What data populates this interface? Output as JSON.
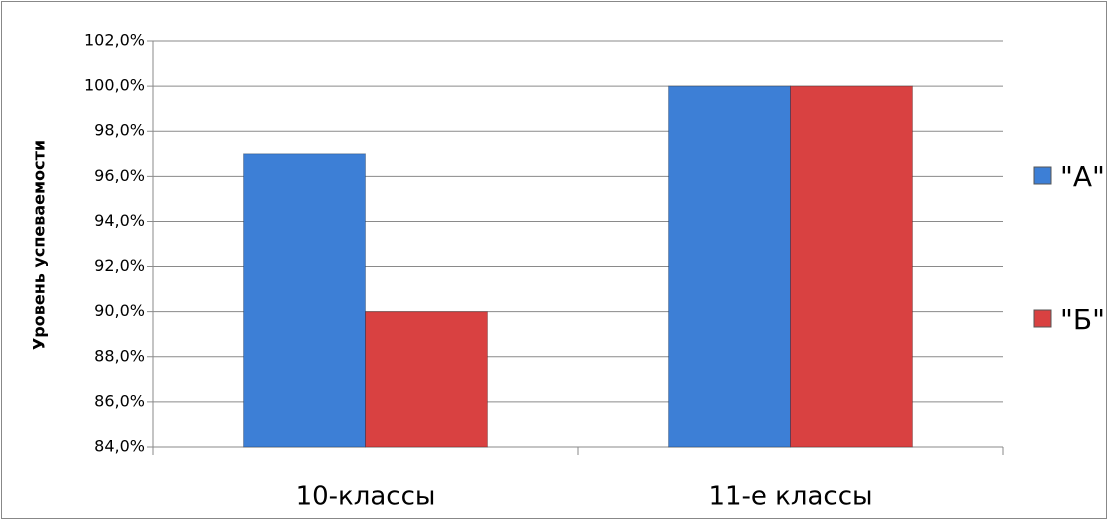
{
  "chart_data": {
    "type": "bar",
    "y_label": "Уровень успеваемости",
    "categories": [
      "10-классы",
      "11-е классы"
    ],
    "series": [
      {
        "name": "\"А\"",
        "color": "#3d7fd6",
        "values": [
          97.0,
          100.0
        ]
      },
      {
        "name": "\"Б\"",
        "color": "#d94141",
        "values": [
          90.0,
          100.0
        ]
      }
    ],
    "ylim": [
      84,
      102
    ],
    "yticks": [
      {
        "value": 84,
        "label": "84,0%"
      },
      {
        "value": 86,
        "label": "86,0%"
      },
      {
        "value": 88,
        "label": "88,0%"
      },
      {
        "value": 90,
        "label": "90,0%"
      },
      {
        "value": 92,
        "label": "92,0%"
      },
      {
        "value": 94,
        "label": "94,0%"
      },
      {
        "value": 96,
        "label": "96,0%"
      },
      {
        "value": 98,
        "label": "98,0%"
      },
      {
        "value": 100,
        "label": "100,0%"
      },
      {
        "value": 102,
        "label": "102,0%"
      }
    ],
    "grid": true,
    "legend": "right"
  }
}
